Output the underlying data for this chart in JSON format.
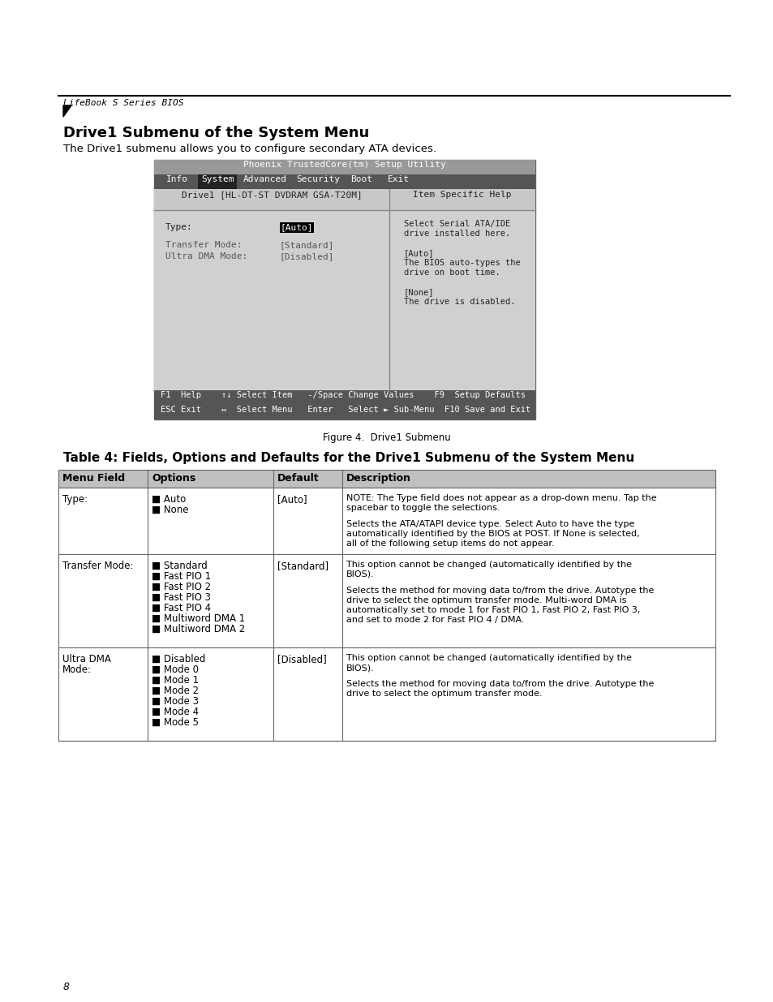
{
  "page_bg": "#ffffff",
  "header_line_color": "#000000",
  "header_text": "LifeBook S Series BIOS",
  "triangle_color": "#000000",
  "section_title": "Drive1 Submenu of the System Menu",
  "section_intro": "The Drive1 submenu allows you to configure secondary ATA devices.",
  "bios_title": "Phoenix TrustedCore(tm) Setup Utility",
  "bios_title_bg": "#999999",
  "menu_bar_bg": "#555555",
  "menu_items": [
    "Info",
    "System",
    "Advanced",
    "Security",
    "Boot",
    "Exit"
  ],
  "selected_menu": "System",
  "selected_menu_bg": "#333333",
  "bios_content_bg": "#cccccc",
  "bios_border_color": "#000000",
  "bios_subheader": "Drive1 [HL-DT-ST DVDRAM GSA-T20M]",
  "bios_right_header": "Item Specific Help",
  "bios_help_lines": [
    "Select Serial ATA/IDE",
    "drive installed here.",
    "",
    "[Auto]",
    "The BIOS auto-types the",
    "drive on boot time.",
    "",
    "[None]",
    "The drive is disabled."
  ],
  "bios_footer_lines": [
    "F1  Help    ↑↓ Select Item   -/Space Change Values    F9  Setup Defaults",
    "ESC Exit    ↔  Select Menu   Enter   Select ► Sub-Menu  F10 Save and Exit"
  ],
  "bios_footer_bg": "#555555",
  "figure_caption": "Figure 4.  Drive1 Submenu",
  "table_title": "Table 4: Fields, Options and Defaults for the Drive1 Submenu of the System Menu",
  "table_header_bg": "#cccccc",
  "table_cols": [
    "Menu Field",
    "Options",
    "Default",
    "Description"
  ],
  "table_rows": [
    {
      "field": "Type:",
      "options": "■ Auto\n■ None",
      "default": "[Auto]",
      "description": "NOTE: The Type field does not appear as a drop-down menu. Tap the spacebar to toggle the selections.\n\nSelects the ATA/ATAPI device type. Select Auto to have the type automatically identified by the BIOS at POST. If None is selected, all of the following setup items do not appear."
    },
    {
      "field": "Transfer Mode:",
      "options": "■ Standard\n■ Fast PIO 1\n■ Fast PIO 2\n■ Fast PIO 3\n■ Fast PIO 4\n■ Multiword DMA 1\n■ Multiword DMA 2",
      "default": "[Standard]",
      "description": "This option cannot be changed (automatically identified by the BIOS).\n\nSelects the method for moving data to/from the drive. Autotype the drive to select the optimum transfer mode.  Multi-word DMA is automatically set to mode 1 for Fast PIO 1, Fast PIO 2, Fast PIO 3, and set to mode 2 for Fast PIO 4 / DMA."
    },
    {
      "field": "Ultra DMA\nMode:",
      "options": "■ Disabled\n■ Mode 0\n■ Mode 1\n■ Mode 2\n■ Mode 3\n■ Mode 4\n■ Mode 5",
      "default": "[Disabled]",
      "description": "This option cannot be changed (automatically identified by the BIOS).\n\nSelects the method for moving data to/from the drive. Autotype the drive to select the optimum transfer mode."
    }
  ],
  "page_number": "8"
}
